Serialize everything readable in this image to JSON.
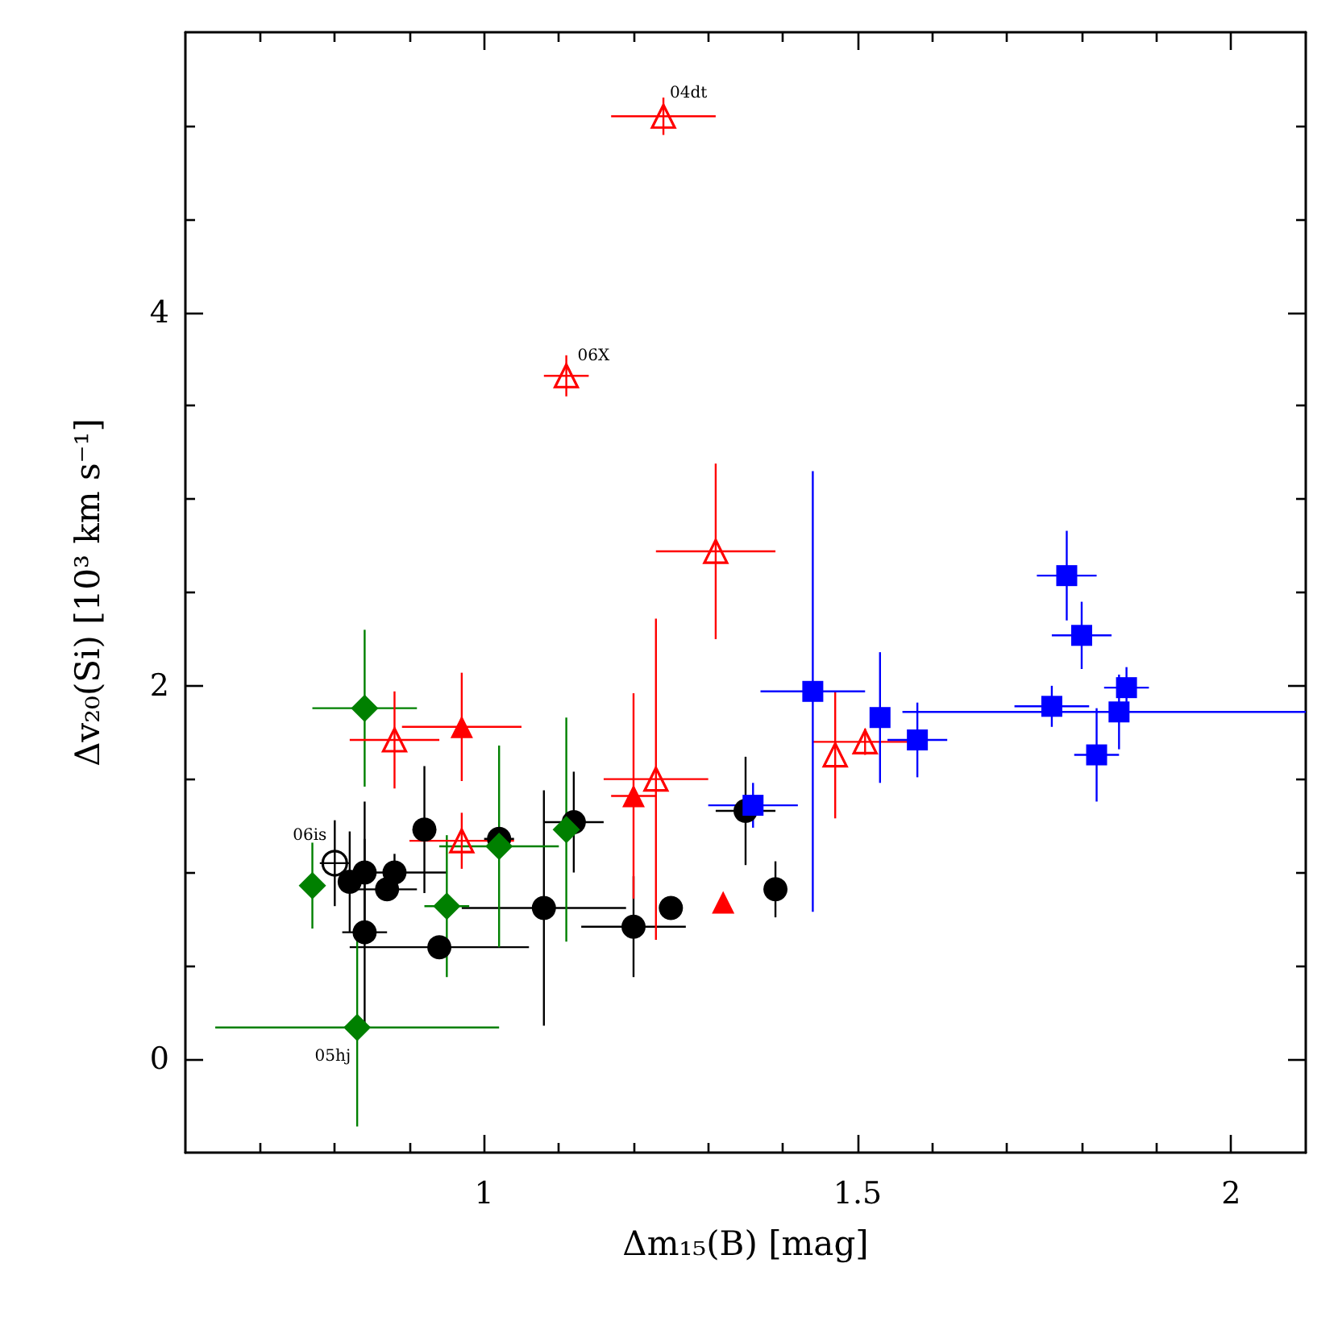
{
  "chart_data": {
    "type": "scatter",
    "xlabel": "Δm₁₅(B) [mag]",
    "ylabel": "Δv₂₀(Si) [10³ km s⁻¹]",
    "xlim": [
      0.6,
      2.1
    ],
    "ylim": [
      -0.5,
      5.5
    ],
    "xticks": [
      {
        "value": 0.7,
        "label": null
      },
      {
        "value": 0.8,
        "label": null
      },
      {
        "value": 0.9,
        "label": null
      },
      1,
      {
        "value": 1.1,
        "label": null
      },
      {
        "value": 1.2,
        "label": null
      },
      {
        "value": 1.3,
        "label": null
      },
      {
        "value": 1.4,
        "label": null
      },
      1.5,
      {
        "value": 1.6,
        "label": null
      },
      {
        "value": 1.7,
        "label": null
      },
      {
        "value": 1.8,
        "label": null
      },
      {
        "value": 1.9,
        "label": null
      },
      2
    ],
    "yticks": [
      0,
      {
        "value": 0.5,
        "label": null
      },
      {
        "value": 1,
        "label": null
      },
      {
        "value": 1.5,
        "label": null
      },
      2,
      {
        "value": 2.5,
        "label": null
      },
      {
        "value": 3,
        "label": null
      },
      {
        "value": 3.5,
        "label": null
      },
      4,
      {
        "value": 4.5,
        "label": null
      },
      {
        "value": 5,
        "label": null
      }
    ],
    "series": [
      {
        "color": "#000000",
        "marker": "circle",
        "x": [
          0.82,
          0.84,
          0.84,
          0.87,
          0.88,
          0.92,
          0.94,
          1.02,
          1.08,
          1.12,
          1.2,
          1.25,
          1.35,
          1.39
        ],
        "values": [
          0.95,
          1.0,
          0.68,
          0.91,
          1.0,
          1.23,
          0.6,
          1.18,
          0.81,
          1.27,
          0.71,
          0.81,
          1.33,
          0.91
        ],
        "errors": [
          0.27,
          0.38,
          0.5,
          0.06,
          0.1,
          0.34,
          null,
          null,
          0.63,
          0.27,
          0.27,
          null,
          0.29,
          0.15
        ],
        "xerrors": [
          null,
          null,
          0.03,
          0.04,
          0.07,
          null,
          0.12,
          0.02,
          0.11,
          0.04,
          0.07,
          null,
          0.04,
          null
        ]
      },
      {
        "color": "#000000",
        "marker": "circle-open",
        "x": [
          0.8
        ],
        "values": [
          1.05
        ],
        "errors": [
          0.23
        ],
        "xerrors": [
          0.02
        ]
      },
      {
        "color": "#008000",
        "marker": "diamond",
        "x": [
          0.77,
          0.83,
          0.84,
          0.95,
          1.02,
          1.11
        ],
        "values": [
          0.93,
          0.17,
          1.88,
          0.82,
          1.14,
          1.23
        ],
        "errors": [
          0.23,
          0.53,
          0.42,
          0.38,
          0.54,
          0.6
        ],
        "xerrors": [
          null,
          0.19,
          0.07,
          0.03,
          0.08,
          null
        ]
      },
      {
        "color": "#ff0000",
        "marker": "triangle",
        "x": [
          0.97,
          1.2,
          1.32
        ],
        "values": [
          1.78,
          1.41,
          0.84
        ],
        "errors": [
          0.29,
          0.55,
          null
        ],
        "xerrors": [
          0.08,
          0.03,
          null
        ]
      },
      {
        "color": "#ff0000",
        "marker": "triangle-open",
        "x": [
          0.88,
          0.97,
          1.11,
          1.23,
          1.24,
          1.31,
          1.47,
          1.51
        ],
        "values": [
          1.71,
          1.17,
          3.66,
          1.5,
          5.05,
          2.72,
          1.63,
          1.7
        ],
        "errors": [
          0.26,
          0.15,
          0.11,
          0.86,
          0.1,
          0.47,
          0.34,
          0.07
        ],
        "xerrors": [
          0.06,
          0.07,
          0.03,
          0.07,
          0.07,
          0.08,
          null,
          0.07
        ]
      },
      {
        "color": "#0000ff",
        "marker": "square",
        "x": [
          1.36,
          1.44,
          1.53,
          1.58,
          1.76,
          1.78,
          1.8,
          1.82,
          1.85,
          1.86
        ],
        "values": [
          1.36,
          1.97,
          1.83,
          1.71,
          1.89,
          2.59,
          2.27,
          1.63,
          1.86,
          1.99
        ],
        "errors": [
          0.12,
          1.18,
          0.35,
          0.2,
          0.11,
          0.24,
          0.18,
          0.25,
          0.2,
          0.11
        ],
        "xerrors": [
          0.06,
          0.07,
          null,
          0.04,
          0.05,
          0.04,
          0.04,
          0.03,
          [
            1.56,
            2.1
          ],
          0.03
        ]
      }
    ],
    "annotations": [
      {
        "text": "04dt",
        "x": 1.24,
        "y": 5.05
      },
      {
        "text": "06X",
        "x": 1.11,
        "y": 3.66
      },
      {
        "text": "06is",
        "x": 0.8,
        "y": 1.05
      },
      {
        "text": "05hj",
        "x": 0.83,
        "y": 0.17
      }
    ]
  }
}
